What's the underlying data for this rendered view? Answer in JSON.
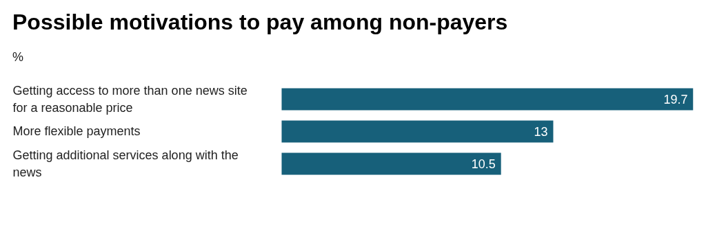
{
  "chart_data": {
    "type": "bar",
    "orientation": "horizontal",
    "title": "Possible motivations to pay among non-payers",
    "subtitle": "%",
    "categories": [
      "Getting access to more than one news site for a reasonable price",
      "More flexible payments",
      "Getting additional services along with the news"
    ],
    "values": [
      19.7,
      13,
      10.5
    ],
    "color": "#17607a",
    "data_labels": true
  }
}
